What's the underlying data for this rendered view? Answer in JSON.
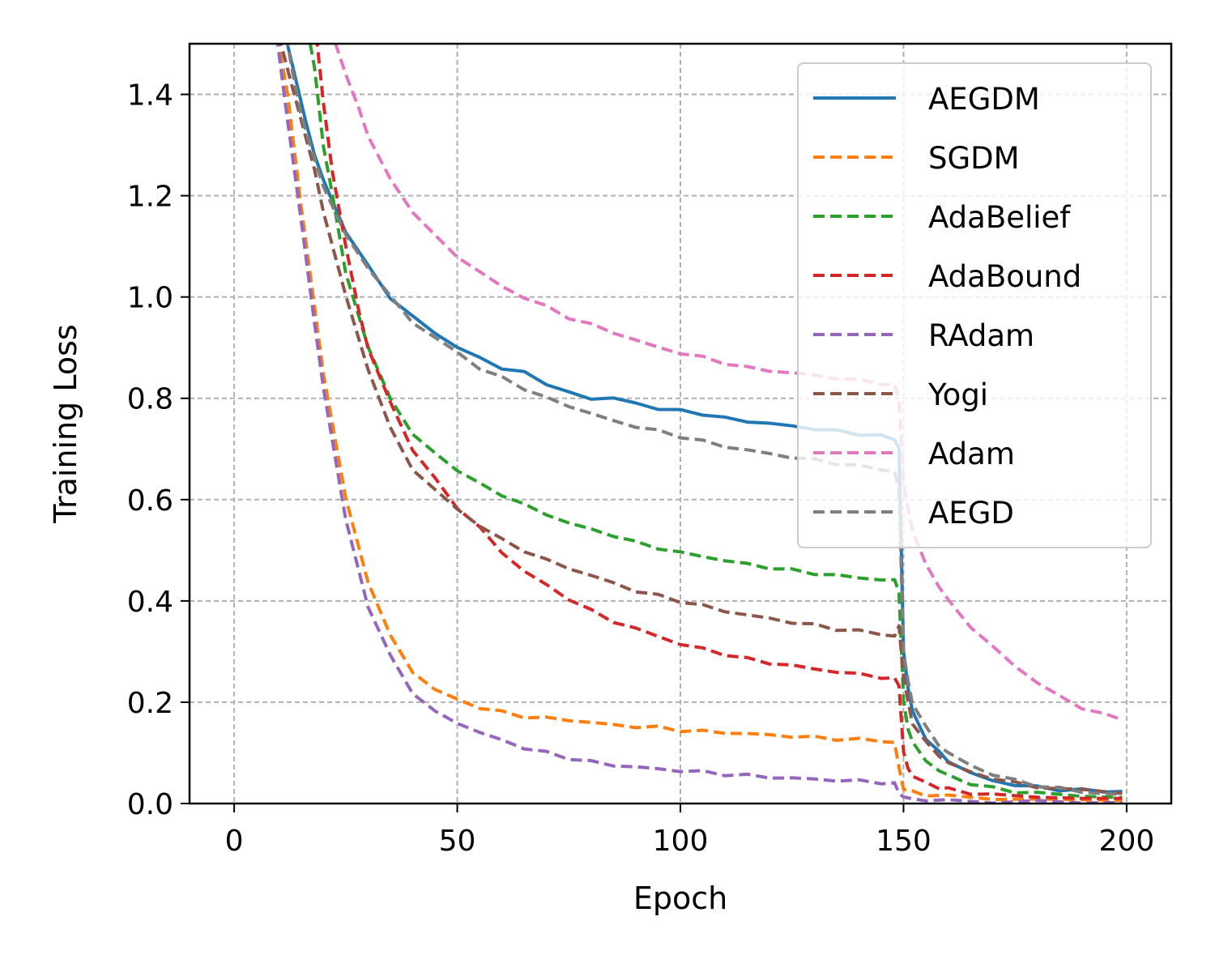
{
  "chart_data": {
    "type": "line",
    "title": "",
    "xlabel": "Epoch",
    "ylabel": "Training Loss",
    "xlim": [
      -10,
      210
    ],
    "ylim": [
      0.0,
      1.5
    ],
    "xticks": [
      0,
      50,
      100,
      150,
      200
    ],
    "xtick_labels": [
      "0",
      "50",
      "100",
      "150",
      "200"
    ],
    "yticks": [
      0.0,
      0.2,
      0.4,
      0.6,
      0.8,
      1.0,
      1.2,
      1.4
    ],
    "ytick_labels": [
      "0.0",
      "0.2",
      "0.4",
      "0.6",
      "0.8",
      "1.0",
      "1.2",
      "1.4"
    ],
    "grid": true,
    "legend_position": "top-right",
    "series": [
      {
        "name": "AEGDM",
        "color": "#1f77b4",
        "style": "solid",
        "x": [
          10,
          12,
          14,
          16,
          18,
          20,
          25,
          30,
          35,
          40,
          45,
          50,
          55,
          60,
          65,
          70,
          75,
          80,
          85,
          90,
          95,
          100,
          105,
          110,
          115,
          120,
          125,
          130,
          135,
          140,
          145,
          148,
          149,
          150,
          151,
          152,
          155,
          158,
          160,
          165,
          170,
          175,
          180,
          185,
          190,
          195,
          199
        ],
        "y": [
          1.6,
          1.5,
          1.42,
          1.35,
          1.28,
          1.23,
          1.13,
          1.06,
          1.0,
          0.96,
          0.93,
          0.9,
          0.88,
          0.86,
          0.85,
          0.83,
          0.81,
          0.8,
          0.8,
          0.79,
          0.78,
          0.775,
          0.77,
          0.76,
          0.755,
          0.75,
          0.745,
          0.74,
          0.735,
          0.73,
          0.725,
          0.72,
          0.7,
          0.3,
          0.23,
          0.18,
          0.13,
          0.1,
          0.085,
          0.06,
          0.045,
          0.037,
          0.032,
          0.028,
          0.026,
          0.025,
          0.024
        ]
      },
      {
        "name": "SGDM",
        "color": "#ff7f0e",
        "style": "dashed",
        "x": [
          9,
          12,
          15,
          18,
          20,
          25,
          30,
          35,
          40,
          45,
          50,
          55,
          60,
          65,
          70,
          75,
          80,
          85,
          90,
          95,
          100,
          105,
          110,
          115,
          120,
          125,
          130,
          135,
          140,
          145,
          148,
          149,
          150,
          152,
          155,
          160,
          170,
          180,
          190,
          199
        ],
        "y": [
          1.55,
          1.4,
          1.18,
          0.98,
          0.85,
          0.6,
          0.44,
          0.33,
          0.26,
          0.225,
          0.205,
          0.19,
          0.18,
          0.172,
          0.168,
          0.165,
          0.16,
          0.155,
          0.152,
          0.15,
          0.145,
          0.142,
          0.14,
          0.138,
          0.135,
          0.133,
          0.13,
          0.128,
          0.126,
          0.124,
          0.12,
          0.07,
          0.03,
          0.022,
          0.018,
          0.014,
          0.01,
          0.008,
          0.007,
          0.006
        ]
      },
      {
        "name": "AdaBelief",
        "color": "#2ca02c",
        "style": "dashed",
        "x": [
          15,
          18,
          20,
          22,
          25,
          30,
          35,
          40,
          45,
          50,
          55,
          60,
          65,
          70,
          75,
          80,
          85,
          90,
          95,
          100,
          105,
          110,
          115,
          120,
          125,
          130,
          135,
          140,
          145,
          148,
          149,
          150,
          151,
          152,
          155,
          158,
          160,
          165,
          170,
          175,
          180,
          190,
          199
        ],
        "y": [
          1.6,
          1.45,
          1.3,
          1.2,
          1.05,
          0.9,
          0.8,
          0.73,
          0.69,
          0.66,
          0.63,
          0.61,
          0.59,
          0.57,
          0.555,
          0.54,
          0.53,
          0.515,
          0.505,
          0.495,
          0.488,
          0.48,
          0.472,
          0.466,
          0.46,
          0.455,
          0.45,
          0.446,
          0.442,
          0.44,
          0.42,
          0.2,
          0.15,
          0.12,
          0.085,
          0.065,
          0.055,
          0.04,
          0.03,
          0.024,
          0.02,
          0.015,
          0.012
        ]
      },
      {
        "name": "AdaBound",
        "color": "#d62728",
        "style": "dashed",
        "x": [
          18,
          20,
          22,
          25,
          28,
          30,
          35,
          40,
          45,
          50,
          55,
          60,
          65,
          70,
          75,
          80,
          85,
          90,
          95,
          100,
          105,
          110,
          115,
          120,
          125,
          130,
          135,
          140,
          145,
          148,
          149,
          150,
          151,
          152,
          155,
          158,
          160,
          165,
          170,
          180,
          190,
          199
        ],
        "y": [
          1.55,
          1.38,
          1.25,
          1.1,
          0.97,
          0.9,
          0.79,
          0.7,
          0.64,
          0.585,
          0.545,
          0.495,
          0.46,
          0.43,
          0.405,
          0.38,
          0.36,
          0.345,
          0.33,
          0.315,
          0.305,
          0.295,
          0.285,
          0.278,
          0.272,
          0.266,
          0.26,
          0.255,
          0.25,
          0.245,
          0.235,
          0.1,
          0.07,
          0.055,
          0.04,
          0.032,
          0.028,
          0.021,
          0.017,
          0.013,
          0.011,
          0.01
        ]
      },
      {
        "name": "RAdam",
        "color": "#9467bd",
        "style": "dashed",
        "x": [
          9,
          12,
          15,
          18,
          20,
          25,
          30,
          35,
          40,
          45,
          50,
          55,
          60,
          65,
          70,
          75,
          80,
          85,
          90,
          95,
          100,
          105,
          110,
          115,
          120,
          125,
          130,
          135,
          140,
          145,
          148,
          149,
          150,
          152,
          155,
          160,
          170,
          180,
          190,
          199
        ],
        "y": [
          1.55,
          1.35,
          1.15,
          0.95,
          0.82,
          0.56,
          0.39,
          0.29,
          0.22,
          0.18,
          0.16,
          0.14,
          0.125,
          0.11,
          0.1,
          0.09,
          0.082,
          0.076,
          0.072,
          0.068,
          0.065,
          0.062,
          0.058,
          0.055,
          0.052,
          0.05,
          0.048,
          0.046,
          0.044,
          0.042,
          0.038,
          0.022,
          0.012,
          0.009,
          0.007,
          0.005,
          0.004,
          0.003,
          0.003,
          0.002
        ]
      },
      {
        "name": "Yogi",
        "color": "#8c564b",
        "style": "dashed",
        "x": [
          9,
          12,
          15,
          18,
          20,
          25,
          30,
          35,
          40,
          45,
          50,
          55,
          60,
          65,
          70,
          75,
          80,
          85,
          90,
          95,
          100,
          105,
          110,
          115,
          120,
          125,
          130,
          135,
          140,
          145,
          148,
          149,
          150,
          151,
          152,
          155,
          158,
          160,
          165,
          170,
          175,
          180,
          190,
          199
        ],
        "y": [
          1.55,
          1.45,
          1.35,
          1.25,
          1.17,
          1.0,
          0.86,
          0.74,
          0.66,
          0.62,
          0.58,
          0.55,
          0.52,
          0.5,
          0.48,
          0.465,
          0.45,
          0.435,
          0.42,
          0.41,
          0.4,
          0.39,
          0.38,
          0.372,
          0.365,
          0.358,
          0.352,
          0.345,
          0.34,
          0.335,
          0.33,
          0.35,
          0.25,
          0.2,
          0.16,
          0.12,
          0.095,
          0.08,
          0.062,
          0.05,
          0.04,
          0.034,
          0.025,
          0.02
        ]
      },
      {
        "name": "Adam",
        "color": "#e377c2",
        "style": "dashed",
        "x": [
          20,
          22,
          25,
          28,
          30,
          35,
          40,
          45,
          50,
          55,
          60,
          65,
          70,
          75,
          80,
          85,
          90,
          95,
          100,
          105,
          110,
          115,
          120,
          125,
          130,
          135,
          140,
          145,
          148,
          149,
          150,
          151,
          152,
          155,
          158,
          160,
          165,
          170,
          175,
          180,
          185,
          190,
          195,
          199
        ],
        "y": [
          1.6,
          1.52,
          1.44,
          1.37,
          1.32,
          1.23,
          1.17,
          1.12,
          1.08,
          1.05,
          1.02,
          1.0,
          0.98,
          0.96,
          0.945,
          0.93,
          0.915,
          0.9,
          0.89,
          0.88,
          0.87,
          0.86,
          0.855,
          0.85,
          0.845,
          0.84,
          0.835,
          0.83,
          0.825,
          0.8,
          0.63,
          0.58,
          0.54,
          0.47,
          0.43,
          0.4,
          0.35,
          0.31,
          0.27,
          0.24,
          0.21,
          0.19,
          0.175,
          0.165
        ]
      },
      {
        "name": "AEGD",
        "color": "#7f7f7f",
        "style": "dashed",
        "x": [
          11,
          13,
          15,
          17,
          20,
          25,
          30,
          35,
          40,
          45,
          50,
          55,
          60,
          65,
          70,
          75,
          80,
          85,
          90,
          95,
          100,
          105,
          110,
          115,
          120,
          125,
          130,
          135,
          140,
          145,
          148,
          149,
          150,
          151,
          152,
          155,
          158,
          160,
          165,
          170,
          175,
          180,
          185,
          190,
          199
        ],
        "y": [
          1.55,
          1.45,
          1.36,
          1.3,
          1.22,
          1.12,
          1.06,
          1.0,
          0.95,
          0.92,
          0.89,
          0.86,
          0.84,
          0.82,
          0.8,
          0.785,
          0.77,
          0.755,
          0.745,
          0.735,
          0.725,
          0.715,
          0.705,
          0.698,
          0.69,
          0.684,
          0.678,
          0.672,
          0.666,
          0.66,
          0.655,
          0.62,
          0.3,
          0.24,
          0.2,
          0.15,
          0.115,
          0.1,
          0.075,
          0.058,
          0.045,
          0.036,
          0.029,
          0.024,
          0.018
        ]
      }
    ]
  }
}
